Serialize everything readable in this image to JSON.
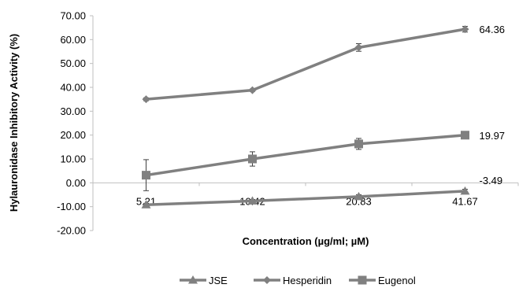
{
  "chart_data": {
    "type": "line",
    "title": "",
    "xlabel": "Concentration (µg/ml; µM)",
    "ylabel": "Hylauronidase Inhibitory Activity (%)",
    "categories": [
      "5.21",
      "10.42",
      "20.83",
      "41.67"
    ],
    "ylim": [
      -20,
      70
    ],
    "yticks": [
      "-20.00",
      "-10.00",
      "0.00",
      "10.00",
      "20.00",
      "30.00",
      "40.00",
      "50.00",
      "60.00",
      "70.00"
    ],
    "grid": false,
    "legend_position": "bottom",
    "line_color": "#808080",
    "series": [
      {
        "name": "JSE",
        "marker": "triangle",
        "values": [
          -9.2,
          -7.6,
          -5.8,
          -3.49
        ],
        "errors": [
          0.6,
          0.6,
          0.8,
          0.8
        ],
        "end_label": "-3.49"
      },
      {
        "name": "Hesperidin",
        "marker": "diamond",
        "values": [
          35.0,
          38.8,
          56.7,
          64.36
        ],
        "errors": [
          0.6,
          0.5,
          1.6,
          1.2
        ],
        "end_label": "64.36"
      },
      {
        "name": "Eugenol",
        "marker": "square",
        "values": [
          3.2,
          10.0,
          16.3,
          19.97
        ],
        "errors": [
          6.5,
          3.0,
          2.3,
          0.8
        ],
        "end_label": "19.97"
      }
    ]
  }
}
